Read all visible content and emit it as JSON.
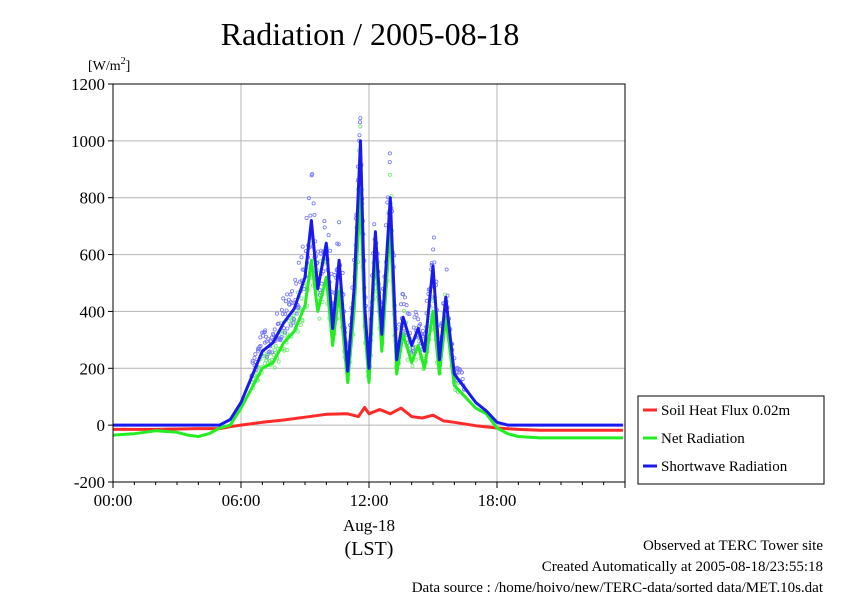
{
  "chart_data": {
    "type": "line",
    "title": "Radiation / 2005-08-18",
    "ylabel_unit": "[W/m",
    "ylabel_unit_sup": "2",
    "ylabel_unit_end": "]",
    "xlabel_date": "Aug-18",
    "xlabel": "(LST)",
    "ylim": [
      -200,
      1200
    ],
    "xlim_hours": [
      0,
      24
    ],
    "yticks": [
      -200,
      0,
      200,
      400,
      600,
      800,
      1000,
      1200
    ],
    "ytick_labels": [
      "-200",
      "0",
      "200",
      "400",
      "600",
      "800",
      "1000",
      "1200"
    ],
    "xticks_hours": [
      0,
      6,
      12,
      18
    ],
    "xtick_labels": [
      "00:00",
      "06:00",
      "12:00",
      "18:00"
    ],
    "grid": true,
    "legend_position": "right",
    "colors": {
      "soil": "#ff2a2a",
      "net": "#22ee22",
      "shortwave": "#1a1aee",
      "shortwave_scatter": "#7777ff",
      "net_scatter": "#77ee77"
    },
    "series": [
      {
        "name": "Soil Heat Flux 0.02m",
        "color": "#ff2a2a",
        "x": [
          0,
          2,
          4,
          5,
          5.5,
          6,
          7,
          8,
          9,
          10,
          11,
          11.5,
          11.8,
          12,
          12.5,
          13,
          13.5,
          14,
          14.5,
          15,
          15.5,
          16,
          17,
          18,
          19,
          20,
          22,
          23.9
        ],
        "y": [
          -15,
          -15,
          -12,
          -12,
          -5,
          0,
          10,
          18,
          28,
          38,
          40,
          30,
          62,
          40,
          55,
          40,
          60,
          30,
          25,
          35,
          15,
          10,
          -2,
          -10,
          -15,
          -18,
          -18,
          -18
        ]
      },
      {
        "name": "Net Radiation",
        "color": "#22ee22",
        "x": [
          0,
          1,
          2,
          3,
          3.5,
          4,
          4.5,
          5,
          5.5,
          6,
          6.5,
          7,
          7.5,
          8,
          8.5,
          9,
          9.3,
          9.6,
          10,
          10.3,
          10.6,
          11,
          11.3,
          11.6,
          11.8,
          12,
          12.3,
          12.6,
          13,
          13.3,
          13.6,
          14,
          14.3,
          14.6,
          15,
          15.3,
          15.6,
          16,
          16.5,
          17,
          17.5,
          18,
          18.5,
          19,
          20,
          22,
          23.9
        ],
        "y": [
          -35,
          -30,
          -20,
          -25,
          -35,
          -40,
          -30,
          -10,
          0,
          60,
          130,
          200,
          220,
          290,
          330,
          420,
          580,
          400,
          520,
          280,
          470,
          150,
          400,
          820,
          350,
          150,
          620,
          260,
          700,
          180,
          320,
          220,
          280,
          200,
          400,
          180,
          380,
          140,
          100,
          60,
          40,
          -10,
          -30,
          -40,
          -45,
          -45,
          -45
        ]
      },
      {
        "name": "Shortwave Radiation",
        "color": "#1a1aee",
        "x": [
          0,
          2,
          4,
          5,
          5.5,
          6,
          6.5,
          7,
          7.5,
          8,
          8.5,
          9,
          9.3,
          9.6,
          10,
          10.3,
          10.6,
          11,
          11.3,
          11.6,
          11.8,
          12,
          12.3,
          12.6,
          13,
          13.3,
          13.6,
          14,
          14.3,
          14.6,
          15,
          15.3,
          15.6,
          16,
          16.5,
          17,
          17.5,
          18,
          18.5,
          19,
          20,
          22,
          23.9
        ],
        "y": [
          0,
          0,
          0,
          0,
          20,
          80,
          170,
          260,
          290,
          360,
          410,
          520,
          720,
          480,
          640,
          340,
          580,
          190,
          480,
          1000,
          420,
          200,
          680,
          320,
          800,
          230,
          380,
          280,
          340,
          260,
          560,
          230,
          450,
          180,
          130,
          80,
          50,
          10,
          0,
          0,
          0,
          0,
          0
        ]
      }
    ]
  },
  "footer": {
    "line1": "Observed at TERC Tower site",
    "line2": "Created Automatically at 2005-08-18/23:55:18",
    "line3": "Data source : /home/hoivo/new/TERC-data/sorted  data/MET.10s.dat"
  }
}
